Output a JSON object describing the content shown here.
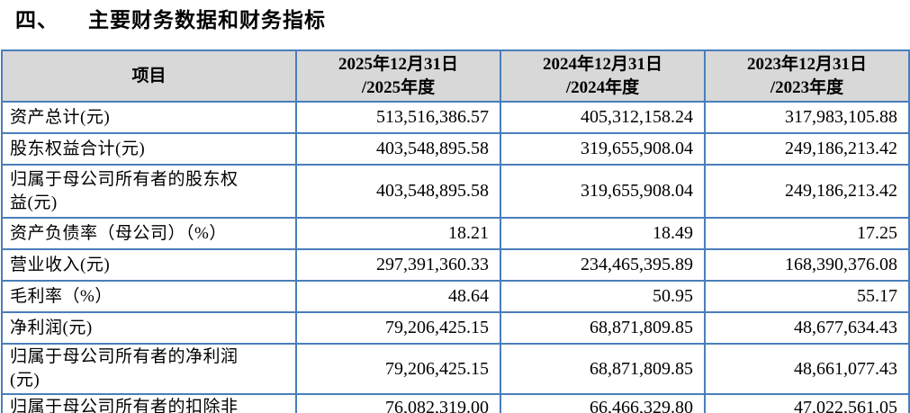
{
  "section": {
    "number": "四、",
    "title": "主要财务数据和财务指标"
  },
  "table": {
    "header": {
      "item_label": "项目",
      "periods": [
        "2025年12月31日\n/2025年度",
        "2024年12月31日\n/2024年度",
        "2023年12月31日\n/2023年度"
      ]
    },
    "rows": [
      {
        "label": "资产总计(元)",
        "values": [
          "513,516,386.57",
          "405,312,158.24",
          "317,983,105.88"
        ]
      },
      {
        "label": "股东权益合计(元)",
        "values": [
          "403,548,895.58",
          "319,655,908.04",
          "249,186,213.42"
        ]
      },
      {
        "label": "归属于母公司所有者的股东权\n益(元)",
        "values": [
          "403,548,895.58",
          "319,655,908.04",
          "249,186,213.42"
        ]
      },
      {
        "label": "资产负债率（母公司）（%）",
        "values": [
          "18.21",
          "18.49",
          "17.25"
        ]
      },
      {
        "label": "营业收入(元)",
        "values": [
          "297,391,360.33",
          "234,465,395.89",
          "168,390,376.08"
        ]
      },
      {
        "label": "毛利率（%）",
        "values": [
          "48.64",
          "50.95",
          "55.17"
        ]
      },
      {
        "label": "净利润(元)",
        "values": [
          "79,206,425.15",
          "68,871,809.85",
          "48,677,634.43"
        ]
      },
      {
        "label": "归属于母公司所有者的净利润\n(元)",
        "values": [
          "79,206,425.15",
          "68,871,809.85",
          "48,661,077.43"
        ]
      },
      {
        "label": "归属于母公司所有者的扣除非",
        "values": [
          "76,082,319.00",
          "66,466,329.80",
          "47,022,561.05"
        ]
      }
    ]
  },
  "colors": {
    "table_border": "#4a7ebb",
    "header_background": "#d8d8d8",
    "text": "#000000"
  }
}
